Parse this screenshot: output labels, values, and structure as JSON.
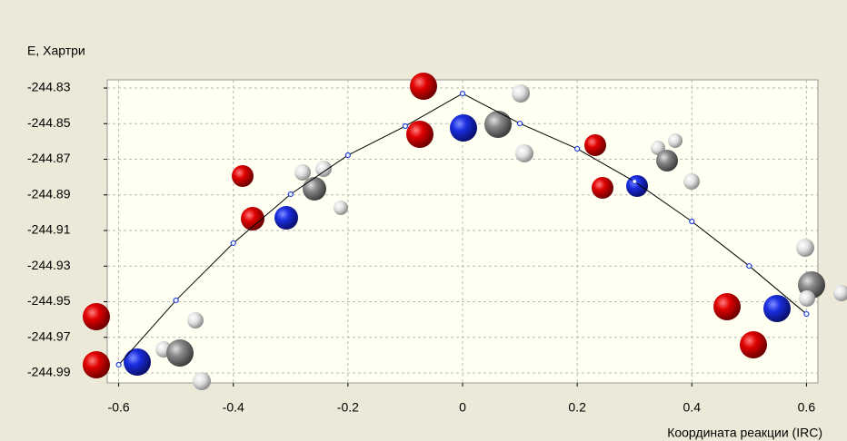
{
  "chart_data": {
    "type": "line",
    "y_label": "E, Хартри",
    "x_label": "Координата реакции (IRC)",
    "x": [
      -0.6,
      -0.5,
      -0.4,
      -0.3,
      -0.2,
      -0.1,
      0,
      0.1,
      0.2,
      0.3,
      0.4,
      0.5,
      0.6
    ],
    "series": [
      {
        "color": "#2040e0",
        "values": [
          -244.9854,
          -244.9492,
          -244.9171,
          -244.8896,
          -244.8677,
          -244.8514,
          -244.8331,
          -244.8499,
          -244.8641,
          -244.8825,
          -244.9049,
          -244.9299,
          -244.9569
        ]
      }
    ],
    "xlim": [
      -0.62,
      0.62
    ],
    "xticks": [
      -0.6,
      -0.4,
      -0.2,
      0,
      0.2,
      0.4,
      0.6
    ],
    "ylim": [
      -244.9956,
      -244.8254
    ],
    "yticks": [
      -244.83,
      -244.85,
      -244.87,
      -244.89,
      -244.91,
      -244.93,
      -244.95,
      -244.97,
      -244.99
    ],
    "grid": true
  }
}
